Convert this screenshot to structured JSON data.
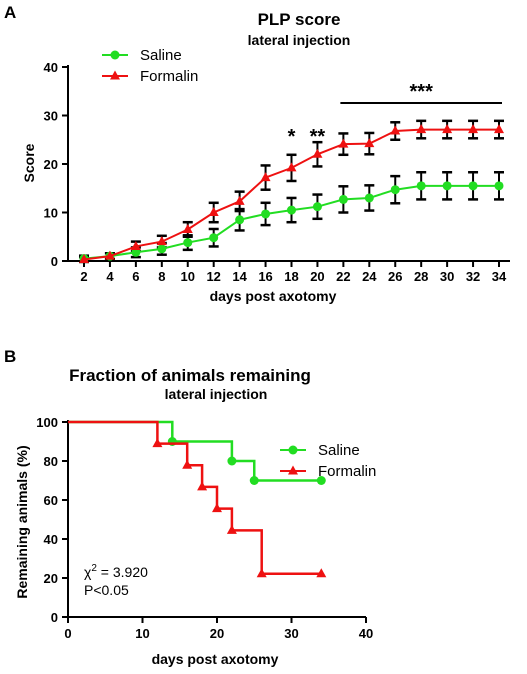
{
  "chart_data": [
    {
      "type": "line",
      "panel_label": "A",
      "title": "PLP score",
      "subtitle": "lateral injection",
      "xlabel": "days post axotomy",
      "ylabel": "Score",
      "x": [
        2,
        4,
        6,
        8,
        10,
        12,
        14,
        16,
        18,
        20,
        22,
        24,
        26,
        28,
        30,
        32,
        34
      ],
      "xticks": [
        "2",
        "4",
        "6",
        "8",
        "10",
        "12",
        "14",
        "16",
        "18",
        "20",
        "22",
        "24",
        "26",
        "28",
        "30",
        "32",
        "34"
      ],
      "ylim": [
        0,
        40
      ],
      "yticks": [
        "0",
        "10",
        "20",
        "30",
        "40"
      ],
      "legend_position": "top-left",
      "series": [
        {
          "name": "Saline",
          "color": "#22dd22",
          "marker": "circle",
          "values": [
            0.5,
            1.0,
            1.8,
            2.5,
            3.8,
            4.8,
            8.5,
            9.7,
            10.5,
            11.2,
            12.7,
            13.0,
            14.7,
            15.5,
            15.5,
            15.5,
            15.5
          ],
          "error": [
            0.6,
            0.6,
            1.0,
            1.2,
            1.5,
            1.8,
            2.2,
            2.3,
            2.5,
            2.5,
            2.7,
            2.6,
            2.8,
            2.8,
            2.8,
            2.8,
            2.8
          ]
        },
        {
          "name": "Formalin",
          "color": "#ee1111",
          "marker": "triangle",
          "values": [
            0.3,
            1.0,
            3.0,
            4.0,
            6.5,
            10.0,
            12.3,
            17.2,
            19.2,
            22.0,
            24.1,
            24.2,
            26.8,
            27.1,
            27.1,
            27.1,
            27.1
          ],
          "error": [
            0.5,
            0.6,
            1.0,
            1.2,
            1.5,
            2.0,
            2.0,
            2.5,
            2.7,
            2.5,
            2.2,
            2.2,
            1.8,
            1.8,
            1.8,
            1.8,
            1.8
          ]
        }
      ],
      "significance": [
        {
          "label": "*",
          "x": 18
        },
        {
          "label": "**",
          "x": 20
        },
        {
          "label": "***",
          "x_range": [
            22,
            34
          ]
        }
      ]
    },
    {
      "type": "line",
      "subtype": "survival-step",
      "panel_label": "B",
      "title": "Fraction of animals remaining",
      "subtitle": "lateral injection",
      "xlabel": "days post axotomy",
      "ylabel": "Remaining animals (%)",
      "xlim": [
        0,
        40
      ],
      "xticks": [
        "0",
        "10",
        "20",
        "30",
        "40"
      ],
      "ylim": [
        0,
        100
      ],
      "yticks": [
        "0",
        "20",
        "40",
        "60",
        "80",
        "100"
      ],
      "legend_position": "top-right",
      "annotation": {
        "chi_prefix": "χ",
        "chi_exp": "2",
        "chi_value": " = 3.920",
        "p": "P<0.05"
      },
      "series": [
        {
          "name": "Saline",
          "color": "#22dd22",
          "marker": "circle",
          "steps": [
            [
              0,
              100
            ],
            [
              14,
              90
            ],
            [
              22,
              80
            ],
            [
              25,
              70
            ],
            [
              34,
              70
            ]
          ],
          "markers": [
            [
              14,
              90
            ],
            [
              22,
              80
            ],
            [
              25,
              70
            ],
            [
              34,
              70
            ]
          ]
        },
        {
          "name": "Formalin",
          "color": "#ee1111",
          "marker": "triangle",
          "steps": [
            [
              0,
              100
            ],
            [
              12,
              88.9
            ],
            [
              16,
              77.8
            ],
            [
              18,
              66.7
            ],
            [
              20,
              55.6
            ],
            [
              22,
              44.4
            ],
            [
              26,
              22.2
            ],
            [
              34,
              22.2
            ]
          ],
          "markers": [
            [
              12,
              88.9
            ],
            [
              16,
              77.8
            ],
            [
              18,
              66.7
            ],
            [
              20,
              55.6
            ],
            [
              22,
              44.4
            ],
            [
              26,
              22.2
            ],
            [
              34,
              22.2
            ]
          ]
        }
      ]
    }
  ]
}
